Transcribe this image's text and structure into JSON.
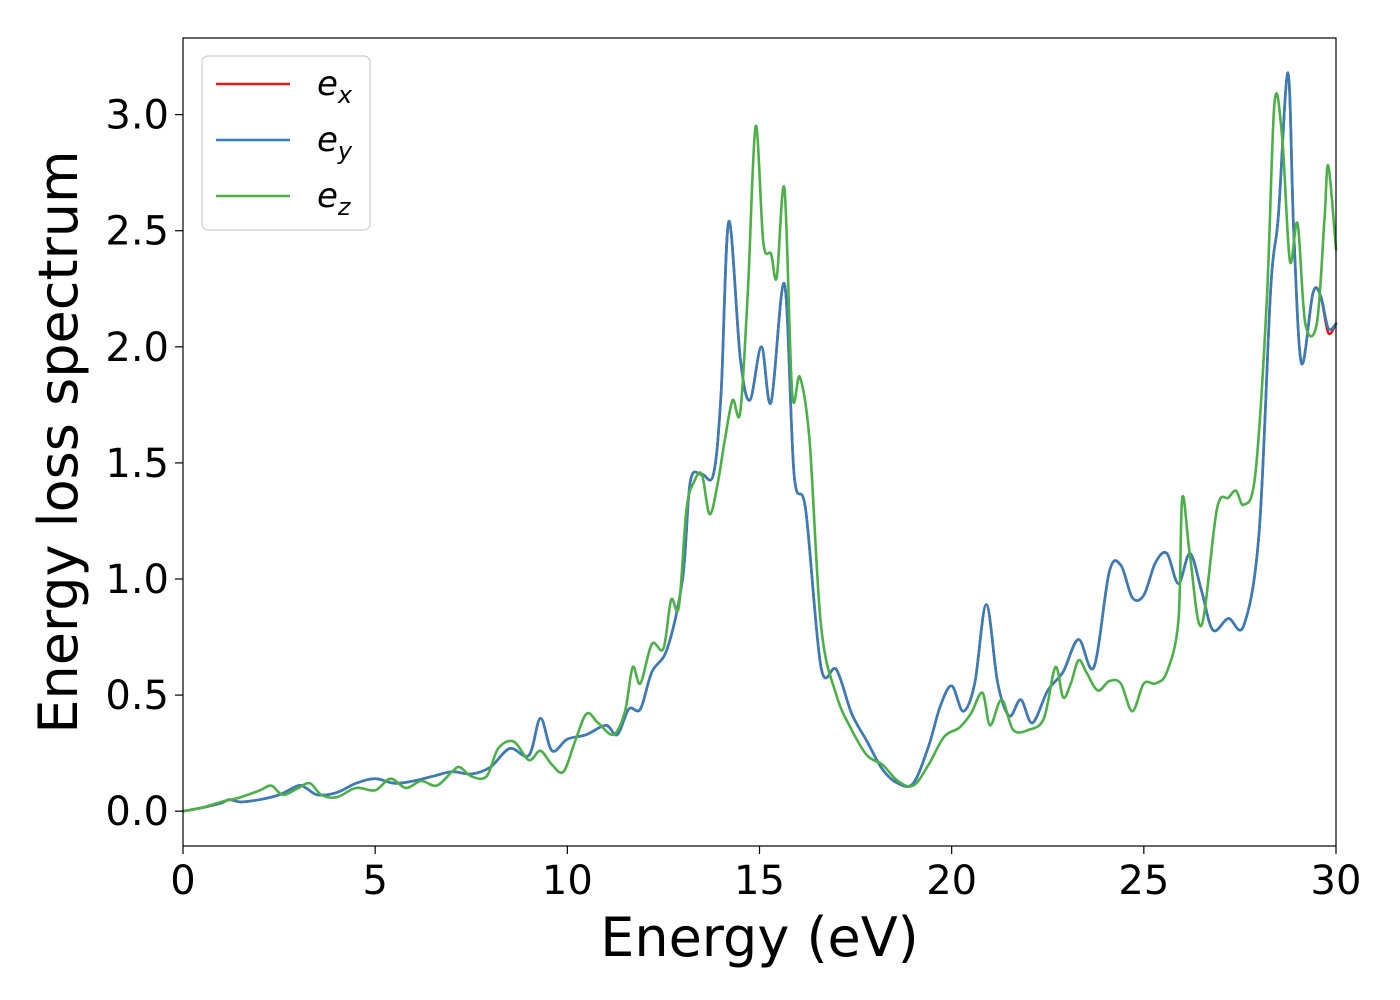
{
  "chart_data": {
    "type": "line",
    "xlabel": "Energy (eV)",
    "ylabel": "Energy loss spectrum",
    "xlim": [
      0,
      30
    ],
    "ylim": [
      -0.15,
      3.33
    ],
    "xticks": [
      0,
      5,
      10,
      15,
      20,
      25,
      30
    ],
    "xtick_labels": [
      "0",
      "5",
      "10",
      "15",
      "20",
      "25",
      "30"
    ],
    "yticks": [
      0.0,
      0.5,
      1.0,
      1.5,
      2.0,
      2.5,
      3.0
    ],
    "ytick_labels": [
      "0.0",
      "0.5",
      "1.0",
      "1.5",
      "2.0",
      "2.5",
      "3.0"
    ],
    "grid": false,
    "legend_position": "top-left",
    "series": [
      {
        "name": "e",
        "subscript": "x",
        "color": "#e41a1c",
        "x": [
          0,
          0.5,
          1.0,
          1.2,
          1.5,
          2.0,
          2.5,
          3.0,
          3.2,
          3.5,
          4.0,
          4.5,
          5.0,
          5.5,
          6.0,
          6.5,
          7.0,
          7.5,
          8.0,
          8.5,
          9.0,
          9.3,
          9.6,
          10.0,
          10.5,
          11.0,
          11.3,
          11.6,
          11.9,
          12.2,
          12.6,
          13.0,
          13.2,
          13.5,
          13.8,
          14.0,
          14.2,
          14.5,
          14.75,
          15.05,
          15.3,
          15.65,
          15.9,
          16.2,
          16.6,
          17.0,
          17.4,
          17.8,
          18.2,
          18.6,
          19.0,
          19.4,
          19.7,
          20.0,
          20.3,
          20.6,
          20.9,
          21.2,
          21.5,
          21.8,
          22.1,
          22.5,
          22.9,
          23.3,
          23.7,
          24.1,
          24.4,
          24.7,
          25.0,
          25.3,
          25.6,
          25.9,
          26.2,
          26.5,
          26.8,
          27.2,
          27.6,
          28.0,
          28.3,
          28.5,
          28.75,
          28.9,
          29.1,
          29.4,
          29.6,
          29.8,
          30.0
        ],
        "y": [
          0.0,
          0.015,
          0.035,
          0.05,
          0.04,
          0.05,
          0.07,
          0.11,
          0.1,
          0.07,
          0.08,
          0.12,
          0.14,
          0.12,
          0.13,
          0.15,
          0.17,
          0.16,
          0.19,
          0.27,
          0.24,
          0.4,
          0.26,
          0.31,
          0.33,
          0.37,
          0.33,
          0.44,
          0.44,
          0.6,
          0.7,
          1.0,
          1.42,
          1.45,
          1.45,
          1.8,
          2.54,
          1.95,
          1.77,
          2.0,
          1.76,
          2.27,
          1.45,
          1.3,
          0.62,
          0.61,
          0.42,
          0.3,
          0.18,
          0.12,
          0.12,
          0.28,
          0.45,
          0.54,
          0.43,
          0.55,
          0.89,
          0.55,
          0.41,
          0.48,
          0.38,
          0.52,
          0.6,
          0.74,
          0.62,
          1.03,
          1.06,
          0.92,
          0.93,
          1.07,
          1.11,
          0.98,
          1.11,
          0.95,
          0.78,
          0.83,
          0.8,
          1.2,
          2.25,
          2.56,
          3.18,
          2.5,
          1.93,
          2.23,
          2.22,
          2.06,
          2.1
        ]
      },
      {
        "name": "e",
        "subscript": "y",
        "color": "#377eb8",
        "x": [
          0,
          0.5,
          1.0,
          1.2,
          1.5,
          2.0,
          2.5,
          3.0,
          3.2,
          3.5,
          4.0,
          4.5,
          5.0,
          5.5,
          6.0,
          6.5,
          7.0,
          7.5,
          8.0,
          8.5,
          9.0,
          9.3,
          9.6,
          10.0,
          10.5,
          11.0,
          11.3,
          11.6,
          11.9,
          12.2,
          12.6,
          13.0,
          13.2,
          13.5,
          13.8,
          14.0,
          14.2,
          14.5,
          14.75,
          15.05,
          15.3,
          15.65,
          15.9,
          16.2,
          16.6,
          17.0,
          17.4,
          17.8,
          18.2,
          18.6,
          19.0,
          19.4,
          19.7,
          20.0,
          20.3,
          20.6,
          20.9,
          21.2,
          21.5,
          21.8,
          22.1,
          22.5,
          22.9,
          23.3,
          23.7,
          24.1,
          24.4,
          24.7,
          25.0,
          25.3,
          25.6,
          25.9,
          26.2,
          26.5,
          26.8,
          27.2,
          27.6,
          28.0,
          28.3,
          28.5,
          28.75,
          28.9,
          29.1,
          29.4,
          29.6,
          29.8,
          30.0
        ],
        "y": [
          0.0,
          0.015,
          0.035,
          0.05,
          0.04,
          0.05,
          0.07,
          0.11,
          0.1,
          0.07,
          0.08,
          0.12,
          0.14,
          0.12,
          0.13,
          0.15,
          0.17,
          0.16,
          0.19,
          0.27,
          0.24,
          0.4,
          0.26,
          0.31,
          0.33,
          0.37,
          0.33,
          0.44,
          0.44,
          0.6,
          0.7,
          1.0,
          1.42,
          1.45,
          1.45,
          1.8,
          2.54,
          1.95,
          1.77,
          2.0,
          1.76,
          2.27,
          1.45,
          1.3,
          0.62,
          0.61,
          0.42,
          0.3,
          0.18,
          0.12,
          0.12,
          0.28,
          0.45,
          0.54,
          0.43,
          0.55,
          0.89,
          0.55,
          0.41,
          0.48,
          0.38,
          0.52,
          0.6,
          0.74,
          0.62,
          1.03,
          1.06,
          0.92,
          0.93,
          1.07,
          1.11,
          0.98,
          1.11,
          0.95,
          0.78,
          0.83,
          0.8,
          1.2,
          2.25,
          2.56,
          3.18,
          2.5,
          1.93,
          2.23,
          2.22,
          2.08,
          2.1
        ]
      },
      {
        "name": "e",
        "subscript": "z",
        "color": "#4daf4a",
        "x": [
          0,
          0.5,
          1.0,
          1.5,
          2.0,
          2.3,
          2.6,
          3.0,
          3.3,
          3.6,
          4.0,
          4.5,
          5.0,
          5.4,
          5.8,
          6.2,
          6.6,
          7.0,
          7.2,
          7.5,
          7.9,
          8.2,
          8.6,
          9.0,
          9.3,
          9.6,
          9.9,
          10.2,
          10.5,
          10.8,
          11.2,
          11.5,
          11.7,
          11.9,
          12.2,
          12.5,
          12.7,
          12.9,
          13.1,
          13.3,
          13.5,
          13.7,
          13.9,
          14.1,
          14.3,
          14.5,
          14.7,
          14.9,
          15.1,
          15.3,
          15.45,
          15.65,
          15.85,
          16.05,
          16.3,
          16.6,
          17.0,
          17.4,
          17.8,
          18.2,
          18.6,
          19.0,
          19.4,
          19.8,
          20.2,
          20.5,
          20.8,
          21.0,
          21.3,
          21.6,
          22.0,
          22.4,
          22.7,
          22.9,
          23.1,
          23.3,
          23.5,
          23.8,
          24.1,
          24.4,
          24.7,
          25.0,
          25.3,
          25.6,
          25.9,
          26.0,
          26.2,
          26.5,
          26.9,
          27.2,
          27.4,
          27.6,
          27.9,
          28.2,
          28.4,
          28.6,
          28.8,
          29.0,
          29.2,
          29.5,
          29.7,
          29.8,
          30.0
        ],
        "y": [
          0.0,
          0.015,
          0.04,
          0.06,
          0.09,
          0.11,
          0.07,
          0.1,
          0.12,
          0.07,
          0.06,
          0.1,
          0.09,
          0.14,
          0.1,
          0.13,
          0.11,
          0.17,
          0.19,
          0.15,
          0.15,
          0.27,
          0.3,
          0.22,
          0.26,
          0.2,
          0.17,
          0.3,
          0.42,
          0.38,
          0.33,
          0.43,
          0.62,
          0.55,
          0.72,
          0.7,
          0.91,
          0.88,
          1.3,
          1.42,
          1.45,
          1.28,
          1.4,
          1.6,
          1.77,
          1.72,
          2.25,
          2.95,
          2.45,
          2.4,
          2.3,
          2.68,
          1.8,
          1.87,
          1.6,
          0.8,
          0.5,
          0.35,
          0.24,
          0.2,
          0.13,
          0.11,
          0.2,
          0.32,
          0.36,
          0.42,
          0.51,
          0.37,
          0.48,
          0.35,
          0.35,
          0.4,
          0.62,
          0.49,
          0.55,
          0.65,
          0.6,
          0.52,
          0.56,
          0.55,
          0.43,
          0.55,
          0.55,
          0.6,
          0.82,
          1.35,
          1.1,
          0.8,
          1.3,
          1.35,
          1.38,
          1.32,
          1.45,
          2.2,
          3.05,
          2.9,
          2.37,
          2.53,
          2.1,
          2.1,
          2.55,
          2.78,
          2.42
        ]
      }
    ]
  }
}
